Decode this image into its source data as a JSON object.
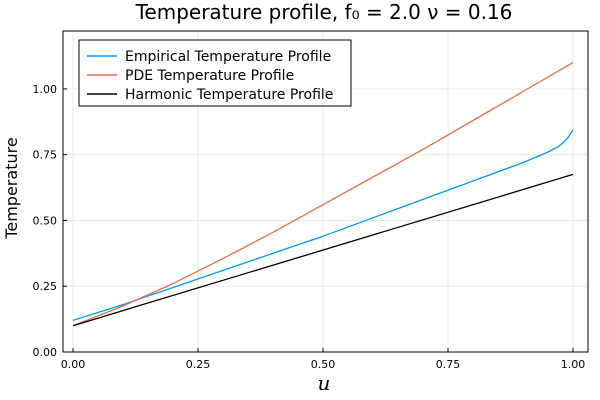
{
  "chart_data": {
    "type": "line",
    "title": "Temperature profile, f₀ = 2.0 ν = 0.16",
    "xlabel": "u",
    "ylabel": "Temperature",
    "xlim": [
      -0.02,
      1.03
    ],
    "ylim": [
      0.0,
      1.22
    ],
    "xticks": [
      0.0,
      0.25,
      0.5,
      0.75,
      1.0
    ],
    "xtick_labels": [
      "0.00",
      "0.25",
      "0.50",
      "0.75",
      "1.00"
    ],
    "yticks": [
      0.0,
      0.25,
      0.5,
      0.75,
      1.0
    ],
    "ytick_labels": [
      "0.00",
      "0.25",
      "0.50",
      "0.75",
      "1.00"
    ],
    "grid": true,
    "legend_position": "top-left",
    "series": [
      {
        "name": "Empirical Temperature Profile",
        "color": "#009AFA",
        "x": [
          0.0,
          0.1,
          0.2,
          0.3,
          0.4,
          0.5,
          0.6,
          0.7,
          0.8,
          0.9,
          0.95,
          0.97,
          0.98,
          0.99,
          1.0
        ],
        "y": [
          0.12,
          0.18,
          0.245,
          0.31,
          0.375,
          0.44,
          0.51,
          0.58,
          0.65,
          0.72,
          0.76,
          0.78,
          0.795,
          0.815,
          0.845
        ]
      },
      {
        "name": "PDE Temperature Profile",
        "color": "#E36F47",
        "x": [
          0.0,
          0.1,
          0.2,
          0.3,
          0.4,
          0.5,
          0.6,
          0.7,
          0.8,
          0.9,
          1.0
        ],
        "y": [
          0.1,
          0.175,
          0.26,
          0.355,
          0.455,
          0.56,
          0.665,
          0.77,
          0.88,
          0.99,
          1.1
        ]
      },
      {
        "name": "Harmonic Temperature Profile",
        "color": "#000000",
        "x": [
          0.0,
          1.0
        ],
        "y": [
          0.1,
          0.675
        ]
      }
    ]
  }
}
